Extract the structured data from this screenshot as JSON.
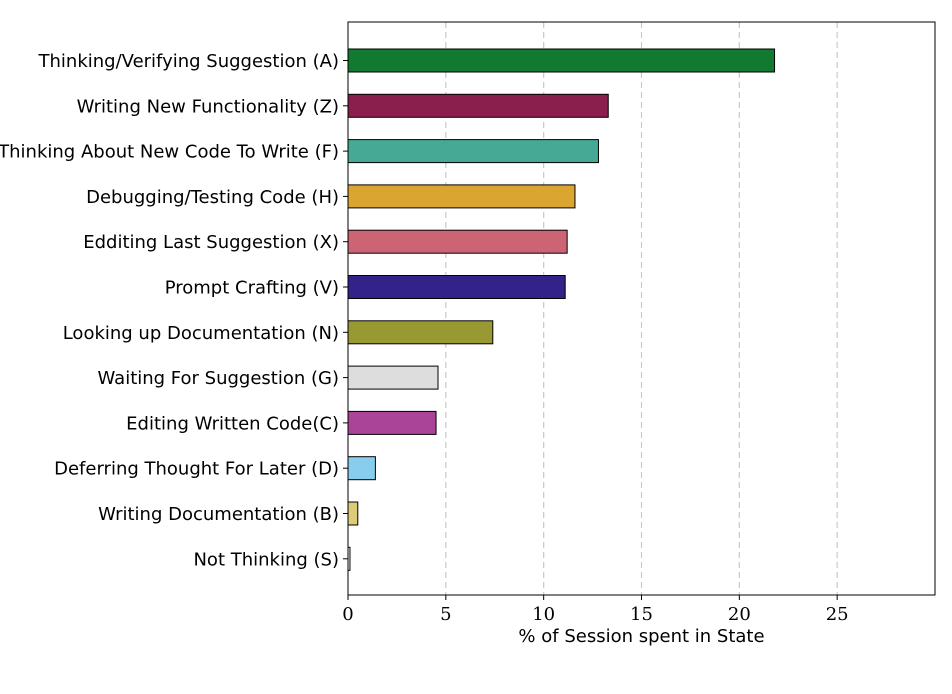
{
  "chart_data": {
    "type": "bar",
    "orientation": "horizontal",
    "title": "",
    "xlabel": "% of Session spent in State",
    "ylabel": "",
    "xlim": [
      0,
      30
    ],
    "xticks": [
      0,
      5,
      10,
      15,
      20,
      25
    ],
    "grid": "vertical-dashed",
    "categories": [
      "Thinking/Verifying Suggestion (A)",
      "Writing New Functionality (Z)",
      "Thinking About New Code To Write (F)",
      "Debugging/Testing Code (H)",
      "Edditing Last Suggestion (X)",
      "Prompt Crafting (V)",
      "Looking up Documentation (N)",
      "Waiting For Suggestion (G)",
      "Editing Written Code(C)",
      "Deferring Thought For Later (D)",
      "Writing Documentation (B)",
      "Not Thinking (S)"
    ],
    "values": [
      21.8,
      13.3,
      12.8,
      11.6,
      11.2,
      11.1,
      7.4,
      4.6,
      4.5,
      1.4,
      0.5,
      0.1
    ],
    "colors": [
      "#127a30",
      "#8a1f4d",
      "#45a995",
      "#dba630",
      "#cd6474",
      "#332288",
      "#999933",
      "#dddddd",
      "#aa4499",
      "#88ccee",
      "#ddcc77",
      "#ffffff"
    ]
  }
}
